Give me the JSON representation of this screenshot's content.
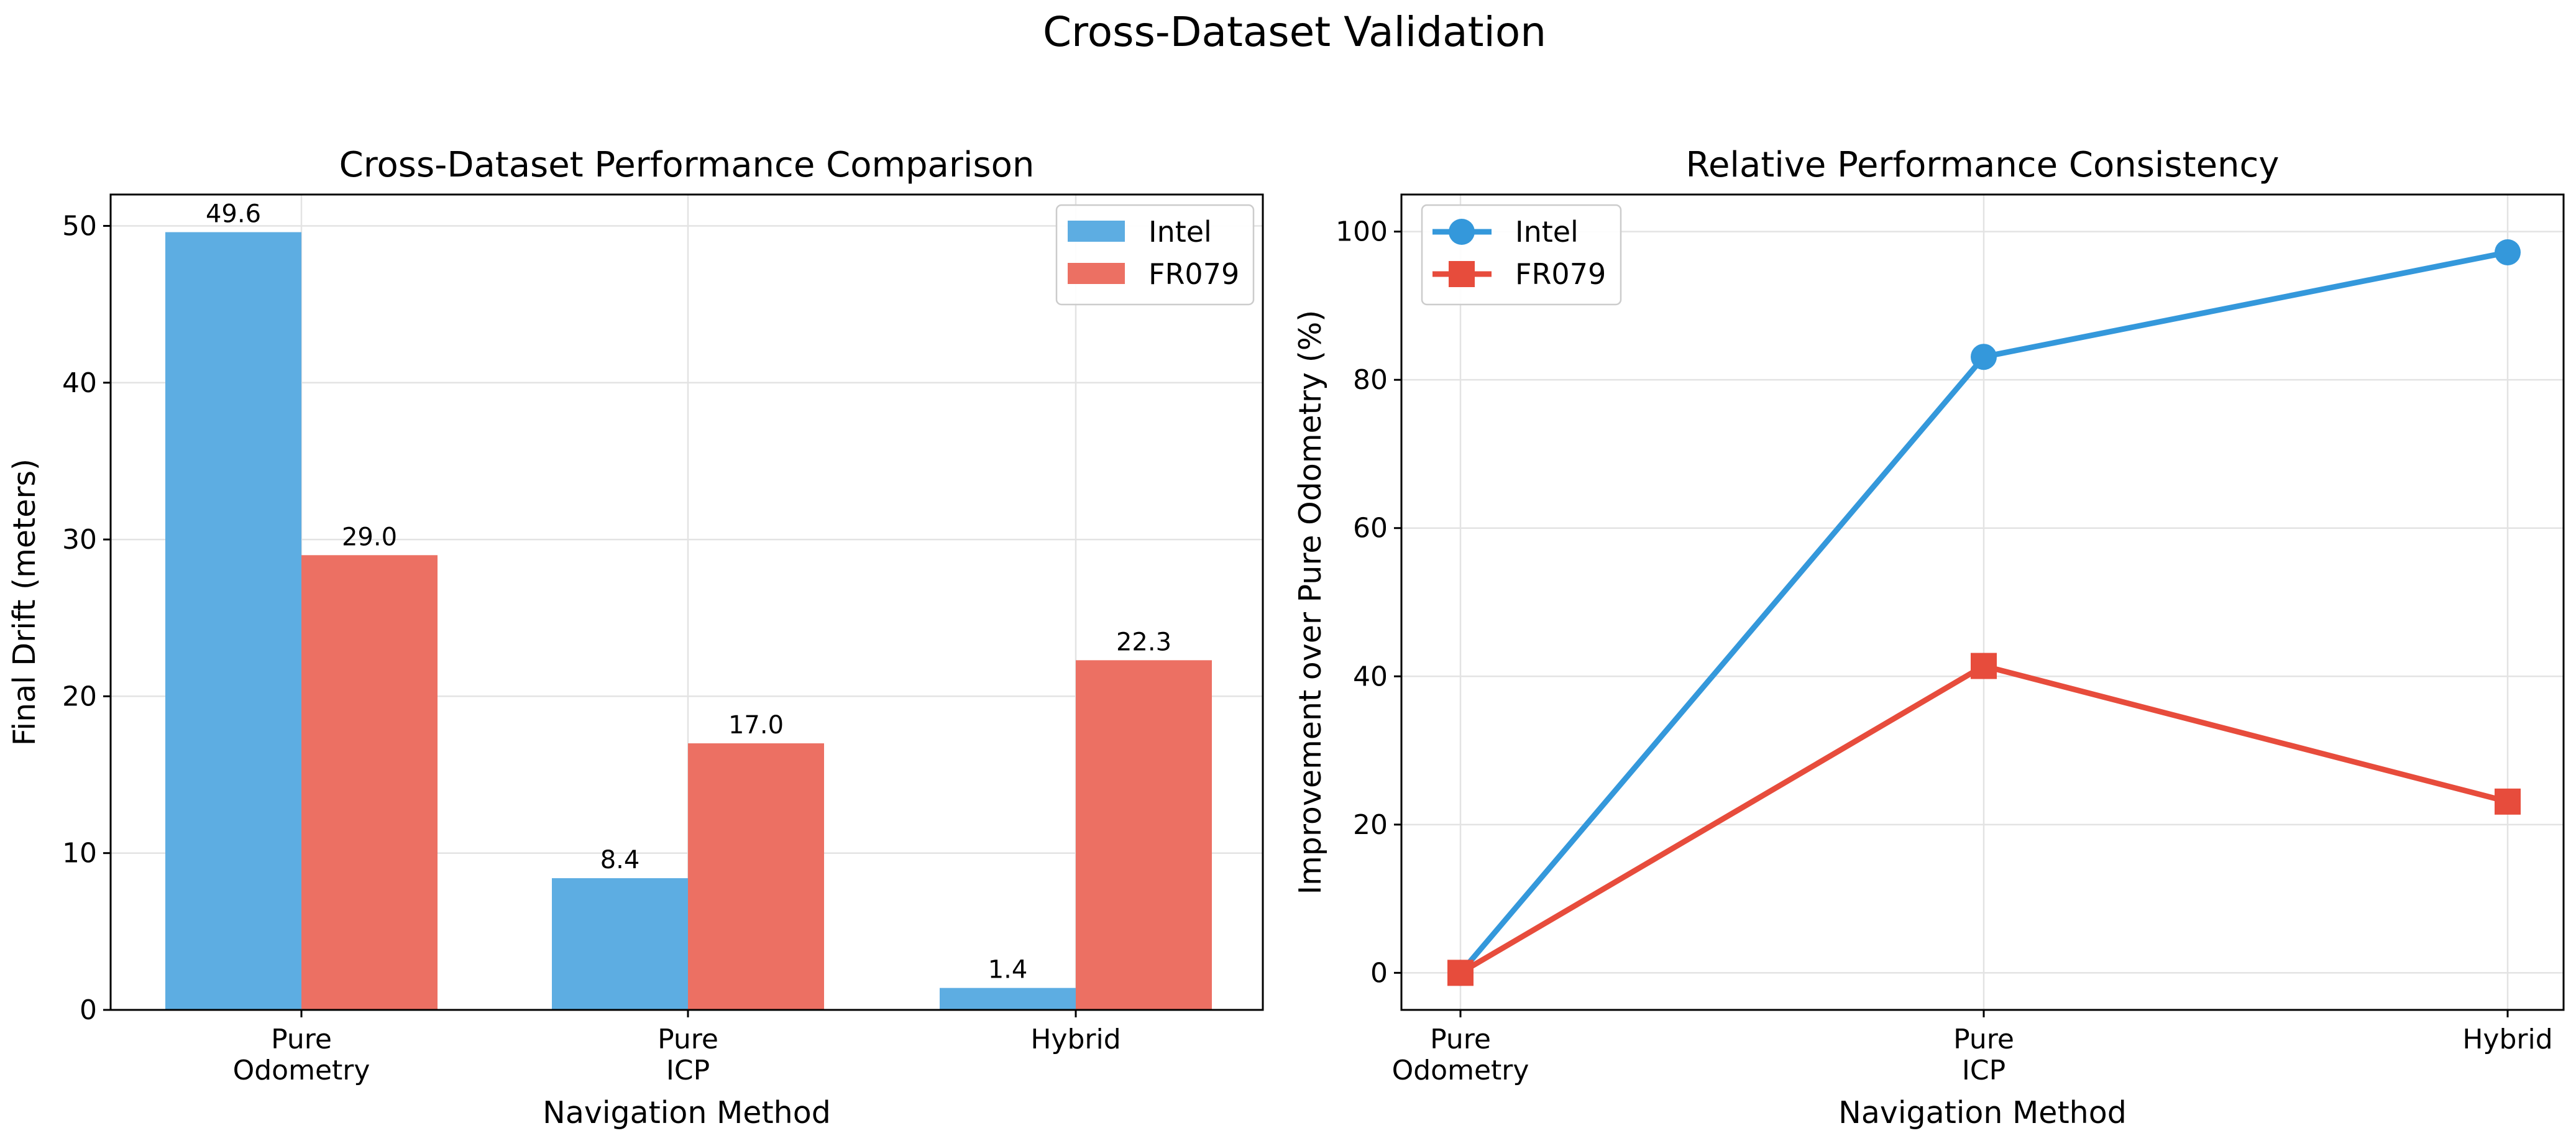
{
  "figure": {
    "title": "Cross-Dataset Validation"
  },
  "chart_data": [
    {
      "type": "bar",
      "title": "Cross-Dataset Performance Comparison",
      "xlabel": "Navigation Method",
      "ylabel": "Final Drift (meters)",
      "categories": [
        [
          "Pure",
          "Odometry"
        ],
        [
          "Pure",
          "ICP"
        ],
        [
          "Hybrid"
        ]
      ],
      "ylim": [
        0,
        52
      ],
      "yticks": [
        0,
        10,
        20,
        30,
        40,
        50
      ],
      "grid": true,
      "legend_position": "top-right",
      "series": [
        {
          "name": "Intel",
          "color": "#5dade2",
          "values": [
            49.6,
            8.4,
            1.4
          ],
          "labels": [
            "49.6",
            "8.4",
            "1.4"
          ]
        },
        {
          "name": "FR079",
          "color": "#ec7063",
          "values": [
            29.0,
            17.0,
            22.3
          ],
          "labels": [
            "29.0",
            "17.0",
            "22.3"
          ]
        }
      ]
    },
    {
      "type": "line",
      "title": "Relative Performance Consistency",
      "xlabel": "Navigation Method",
      "ylabel": "Improvement over Pure Odometry (%)",
      "categories": [
        [
          "Pure",
          "Odometry"
        ],
        [
          "Pure",
          "ICP"
        ],
        [
          "Hybrid"
        ]
      ],
      "ylim": [
        -5,
        105
      ],
      "yticks": [
        0,
        20,
        40,
        60,
        80,
        100
      ],
      "grid": true,
      "legend_position": "top-left",
      "series": [
        {
          "name": "Intel",
          "color": "#3498db",
          "marker": "circle",
          "values": [
            0,
            83.1,
            97.2
          ]
        },
        {
          "name": "FR079",
          "color": "#e74c3c",
          "marker": "square",
          "values": [
            0,
            41.4,
            23.1
          ]
        }
      ]
    }
  ]
}
